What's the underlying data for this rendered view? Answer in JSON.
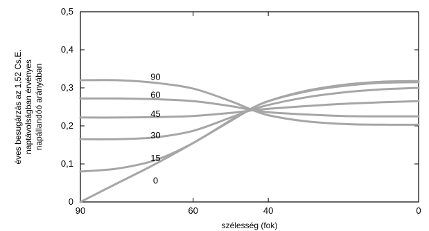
{
  "chart_data": {
    "type": "line",
    "xlabel": "szélesség (fok)",
    "ylabel": [
      "éves besugárzás az 1,52 Cs.E.",
      "naptávolságban érvényes",
      "napállandóó arányában"
    ],
    "x_reversed": true,
    "xlim": [
      90,
      0
    ],
    "ylim": [
      0,
      0.5
    ],
    "x_ticks": [
      {
        "value": 90,
        "label": "90"
      },
      {
        "value": 60,
        "label": "60"
      },
      {
        "value": 40,
        "label": "40"
      },
      {
        "value": 0,
        "label": "0"
      }
    ],
    "y_ticks": [
      {
        "value": 0,
        "label": "0"
      },
      {
        "value": 0.1,
        "label": "0,1"
      },
      {
        "value": 0.2,
        "label": "0,2"
      },
      {
        "value": 0.3,
        "label": "0,3"
      },
      {
        "value": 0.4,
        "label": "0,4"
      },
      {
        "value": 0.5,
        "label": "0,5"
      }
    ],
    "grid": false,
    "line_color": "#a6a6a6",
    "series": [
      {
        "name": "90",
        "label_at": [
          70,
          0.33
        ],
        "x": [
          90,
          80,
          70,
          60,
          50,
          45,
          40,
          30,
          20,
          10,
          0
        ],
        "y": [
          0.32,
          0.32,
          0.313,
          0.298,
          0.265,
          0.245,
          0.228,
          0.212,
          0.205,
          0.203,
          0.203
        ]
      },
      {
        "name": "60",
        "label_at": [
          70,
          0.283
        ],
        "x": [
          90,
          80,
          70,
          60,
          50,
          45,
          40,
          30,
          20,
          10,
          0
        ],
        "y": [
          0.272,
          0.272,
          0.27,
          0.265,
          0.252,
          0.243,
          0.236,
          0.23,
          0.226,
          0.225,
          0.225
        ]
      },
      {
        "name": "45",
        "label_at": [
          70,
          0.233
        ],
        "x": [
          90,
          80,
          70,
          60,
          50,
          45,
          40,
          30,
          20,
          10,
          0
        ],
        "y": [
          0.222,
          0.222,
          0.223,
          0.226,
          0.234,
          0.24,
          0.245,
          0.252,
          0.258,
          0.262,
          0.265
        ]
      },
      {
        "name": "30",
        "label_at": [
          70,
          0.176
        ],
        "x": [
          90,
          80,
          70,
          60,
          50,
          45,
          40,
          30,
          20,
          10,
          0
        ],
        "y": [
          0.165,
          0.165,
          0.17,
          0.187,
          0.222,
          0.24,
          0.255,
          0.275,
          0.288,
          0.296,
          0.3
        ]
      },
      {
        "name": "15",
        "label_at": [
          70,
          0.116
        ],
        "x": [
          90,
          80,
          70,
          60,
          50,
          45,
          40,
          30,
          20,
          10,
          0
        ],
        "y": [
          0.08,
          0.088,
          0.11,
          0.155,
          0.215,
          0.243,
          0.265,
          0.29,
          0.305,
          0.313,
          0.315
        ]
      },
      {
        "name": "0",
        "label_at": [
          70,
          0.057
        ],
        "x": [
          90,
          80,
          70,
          60,
          50,
          45,
          40,
          30,
          20,
          10,
          0
        ],
        "y": [
          0.0,
          0.05,
          0.1,
          0.155,
          0.213,
          0.242,
          0.265,
          0.292,
          0.308,
          0.316,
          0.318
        ]
      }
    ]
  }
}
